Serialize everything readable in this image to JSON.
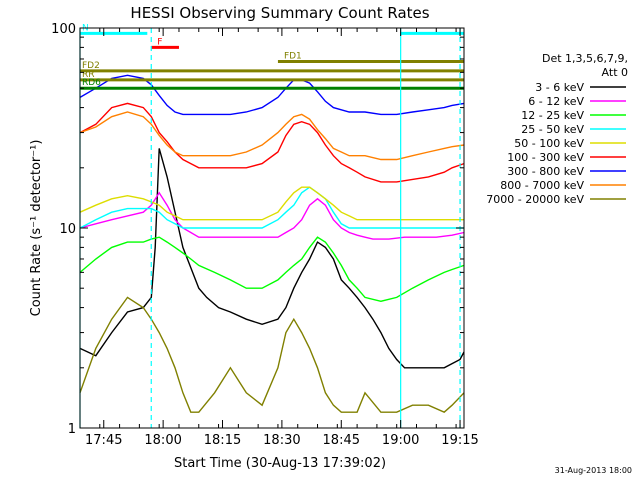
{
  "chart_data": {
    "type": "line",
    "title": "HESSI Observing Summary Count Rates",
    "xlabel": "Start Time (30-Aug-13 17:39:02)",
    "ylabel": "Count Rate (s⁻¹ detector⁻¹)",
    "yscale": "log",
    "ylim": [
      1,
      100
    ],
    "xlim_min": [
      0,
      97
    ],
    "x_ticks": [
      "17:45",
      "18:00",
      "18:15",
      "18:30",
      "18:45",
      "19:00",
      "19:15"
    ],
    "x_ticks_min": [
      6,
      21,
      36,
      51,
      66,
      81,
      96
    ],
    "y_ticks": [
      "1",
      "10",
      "100"
    ],
    "y_tick_values": [
      1,
      10,
      100
    ],
    "legend_header": [
      "Det 1,3,5,6,7,9,",
      "Att 0"
    ],
    "series": [
      {
        "name": "3 - 6 keV",
        "color": "#000000",
        "x": [
          0,
          4,
          8,
          12,
          16,
          18,
          19,
          20,
          22,
          26,
          30,
          32,
          35,
          38,
          42,
          46,
          50,
          52,
          54,
          56,
          58,
          60,
          62,
          64,
          66,
          68,
          70,
          72,
          74,
          76,
          78,
          80,
          82,
          84,
          86,
          88,
          90,
          92,
          94,
          96,
          97
        ],
        "y": [
          2.5,
          2.3,
          3.0,
          3.8,
          4.0,
          4.5,
          8,
          25,
          18,
          8,
          5,
          4.5,
          4.0,
          3.8,
          3.5,
          3.3,
          3.5,
          4.0,
          5.0,
          6.0,
          7.0,
          8.5,
          8.0,
          7.0,
          5.5,
          5.0,
          4.5,
          4.0,
          3.5,
          3.0,
          2.5,
          2.2,
          2.0,
          2.0,
          2.0,
          2.0,
          2.0,
          2.0,
          2.1,
          2.2,
          2.4
        ]
      },
      {
        "name": "6 - 12 keV",
        "color": "#ff00ff",
        "x": [
          0,
          4,
          8,
          12,
          16,
          18,
          20,
          22,
          24,
          26,
          28,
          30,
          34,
          38,
          42,
          46,
          50,
          52,
          54,
          56,
          58,
          60,
          62,
          64,
          66,
          68,
          70,
          72,
          74,
          78,
          82,
          86,
          90,
          94,
          97
        ],
        "y": [
          10,
          10.5,
          11,
          11.5,
          12,
          13,
          15,
          13,
          11,
          10,
          9.5,
          9,
          9,
          9,
          9,
          9,
          9,
          9.5,
          10,
          11,
          13,
          14,
          13,
          11,
          10,
          9.5,
          9.2,
          9,
          8.8,
          8.8,
          9,
          9,
          9,
          9.2,
          9.5
        ]
      },
      {
        "name": "12 - 25 keV",
        "color": "#00ff00",
        "x": [
          0,
          4,
          8,
          12,
          16,
          18,
          20,
          22,
          24,
          26,
          28,
          30,
          34,
          38,
          42,
          46,
          50,
          52,
          54,
          56,
          58,
          60,
          62,
          64,
          66,
          68,
          70,
          72,
          76,
          80,
          84,
          88,
          92,
          94,
          97
        ],
        "y": [
          6,
          7,
          8,
          8.5,
          8.5,
          8.8,
          9,
          8.5,
          8,
          7.5,
          7,
          6.5,
          6,
          5.5,
          5,
          5,
          5.5,
          6,
          6.5,
          7,
          8,
          9,
          8.5,
          7.5,
          6.5,
          5.5,
          5,
          4.5,
          4.3,
          4.5,
          5,
          5.5,
          6,
          6.2,
          6.5
        ]
      },
      {
        "name": "25 - 50 keV",
        "color": "#00ffff",
        "x": [
          0,
          4,
          8,
          12,
          16,
          18,
          20,
          22,
          24,
          26,
          28,
          30,
          34,
          38,
          42,
          46,
          50,
          52,
          54,
          56,
          58,
          60,
          62,
          64,
          66,
          68,
          70,
          72,
          76,
          80,
          84,
          88,
          92,
          94,
          97
        ],
        "y": [
          10,
          11,
          12,
          12.5,
          12.5,
          12.5,
          12,
          11,
          10.5,
          10,
          10,
          10,
          10,
          10,
          10,
          10,
          11,
          12,
          13,
          15,
          16,
          15,
          14,
          12,
          10.5,
          10,
          10,
          10,
          10,
          10,
          10,
          10,
          10,
          10,
          10
        ]
      },
      {
        "name": "50 - 100 keV",
        "color": "#dddd00",
        "x": [
          0,
          4,
          8,
          12,
          16,
          18,
          20,
          22,
          24,
          26,
          28,
          30,
          34,
          38,
          42,
          46,
          50,
          52,
          54,
          56,
          58,
          60,
          62,
          64,
          66,
          68,
          70,
          72,
          76,
          80,
          84,
          88,
          92,
          94,
          97
        ],
        "y": [
          12,
          13,
          14,
          14.5,
          14,
          13.5,
          13,
          12,
          11.5,
          11,
          11,
          11,
          11,
          11,
          11,
          11,
          12,
          13.5,
          15,
          16,
          16,
          15,
          14,
          13,
          12,
          11.5,
          11,
          11,
          11,
          11,
          11,
          11,
          11,
          11,
          11
        ]
      },
      {
        "name": "100 - 300 keV",
        "color": "#ff0000",
        "x": [
          0,
          4,
          8,
          12,
          16,
          18,
          20,
          22,
          24,
          26,
          28,
          30,
          34,
          38,
          42,
          46,
          50,
          52,
          54,
          56,
          58,
          60,
          62,
          64,
          66,
          68,
          70,
          72,
          76,
          80,
          84,
          88,
          92,
          94,
          97
        ],
        "y": [
          30,
          33,
          40,
          42,
          40,
          36,
          30,
          27,
          24,
          22,
          21,
          20,
          20,
          20,
          20,
          21,
          24,
          29,
          33,
          34,
          33,
          30,
          26,
          23,
          21,
          20,
          19,
          18,
          17,
          17,
          17.5,
          18,
          19,
          20,
          21
        ]
      },
      {
        "name": "300 - 800 keV",
        "color": "#0000ff",
        "x": [
          0,
          4,
          8,
          12,
          16,
          18,
          20,
          22,
          24,
          26,
          28,
          30,
          34,
          38,
          42,
          46,
          50,
          52,
          54,
          56,
          58,
          60,
          62,
          64,
          66,
          68,
          70,
          72,
          76,
          80,
          84,
          88,
          92,
          94,
          97
        ],
        "y": [
          45,
          50,
          56,
          58,
          56,
          52,
          46,
          41,
          38,
          37,
          37,
          37,
          37,
          37,
          38,
          40,
          45,
          50,
          55,
          55,
          53,
          48,
          43,
          40,
          39,
          38,
          38,
          38,
          37,
          37,
          38,
          39,
          40,
          41,
          42
        ]
      },
      {
        "name": "800 - 7000 keV",
        "color": "#ff8000",
        "x": [
          0,
          4,
          8,
          12,
          16,
          18,
          20,
          22,
          24,
          26,
          28,
          30,
          34,
          38,
          42,
          46,
          50,
          52,
          54,
          56,
          58,
          60,
          62,
          64,
          66,
          68,
          70,
          72,
          76,
          80,
          84,
          88,
          92,
          94,
          97
        ],
        "y": [
          30,
          32,
          36,
          38,
          36,
          33,
          29,
          26,
          24,
          23,
          23,
          23,
          23,
          23,
          24,
          26,
          30,
          33,
          36,
          37,
          35,
          31,
          28,
          25,
          24,
          23,
          23,
          23,
          22,
          22,
          23,
          24,
          25,
          25.5,
          26
        ]
      },
      {
        "name": "7000 - 20000 keV",
        "color": "#808000",
        "x": [
          0,
          4,
          8,
          12,
          16,
          18,
          20,
          22,
          24,
          26,
          28,
          30,
          34,
          38,
          42,
          46,
          50,
          52,
          54,
          56,
          58,
          60,
          62,
          64,
          66,
          68,
          70,
          72,
          76,
          80,
          84,
          88,
          92,
          94,
          97
        ],
        "y": [
          1.5,
          2.5,
          3.5,
          4.5,
          4.0,
          3.5,
          3.0,
          2.5,
          2.0,
          1.5,
          1.2,
          1.2,
          1.5,
          2.0,
          1.5,
          1.3,
          2.0,
          3.0,
          3.5,
          3.0,
          2.5,
          2.0,
          1.5,
          1.3,
          1.2,
          1.2,
          1.2,
          1.5,
          1.2,
          1.2,
          1.3,
          1.3,
          1.2,
          1.3,
          1.5
        ]
      }
    ],
    "flag_bars": [
      {
        "name": "N",
        "color": "#00ffff",
        "y": 94,
        "segments": [
          [
            0,
            17
          ],
          [
            81,
            97
          ]
        ]
      },
      {
        "name": "F",
        "color": "#ff0000",
        "y": 80,
        "segments": [
          [
            18,
            25
          ]
        ]
      },
      {
        "name": "FD1",
        "color": "#808000",
        "y": 68,
        "segments": [
          [
            50,
            97
          ]
        ]
      },
      {
        "name": "FD2",
        "color": "#808000",
        "y": 61,
        "segments": [
          [
            0,
            97
          ]
        ]
      },
      {
        "name": "RR",
        "color": "#808000",
        "y": 55,
        "segments": [
          [
            0,
            97
          ]
        ]
      },
      {
        "name": "RD6",
        "color": "#008000",
        "y": 50,
        "segments": [
          [
            0,
            97
          ]
        ]
      }
    ],
    "vertical_lines": [
      {
        "x": 0,
        "color": "#00ffff",
        "style": "solid"
      },
      {
        "x": 18,
        "color": "#00ffff",
        "style": "dashed"
      },
      {
        "x": 81,
        "color": "#00ffff",
        "style": "solid"
      },
      {
        "x": 96,
        "color": "#00ffff",
        "style": "dashed"
      }
    ],
    "timestamp": "31-Aug-2013 18:00"
  }
}
